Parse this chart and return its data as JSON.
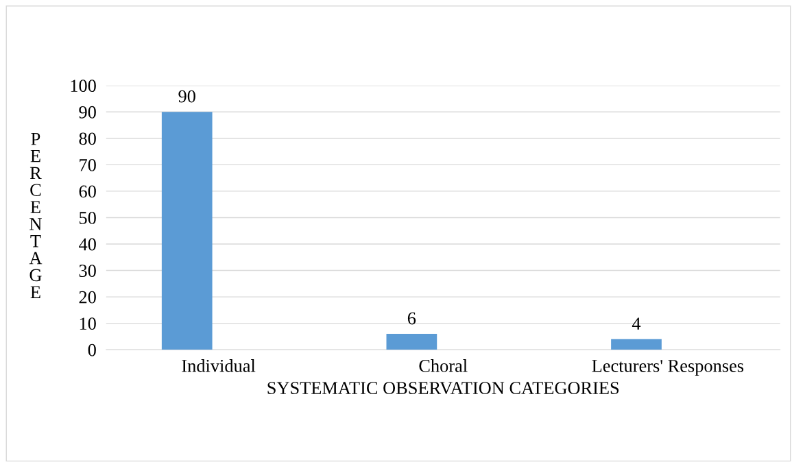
{
  "chart_data": {
    "type": "bar",
    "xlabel": "SYSTEMATIC OBSERVATION CATEGORIES",
    "ylabel": "PERCENTAGE",
    "categories": [
      "Individual",
      "Choral",
      "Lecturers' Responses"
    ],
    "values": [
      90,
      6,
      4
    ],
    "color": "#5b9bd5",
    "ylim": [
      0,
      100
    ],
    "yticks": [
      0,
      10,
      20,
      30,
      40,
      50,
      60,
      70,
      80,
      90,
      100
    ],
    "grid": "y",
    "data_labels": true,
    "legend": false
  }
}
